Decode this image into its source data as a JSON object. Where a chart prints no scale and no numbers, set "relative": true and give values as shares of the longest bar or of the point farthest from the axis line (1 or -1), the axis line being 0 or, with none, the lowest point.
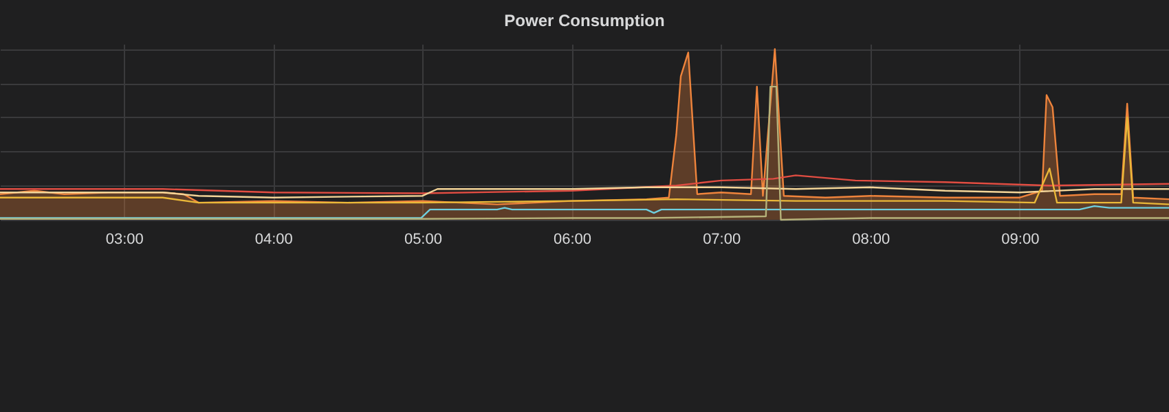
{
  "chart_data": {
    "type": "line",
    "title": "Power Consumption",
    "relative": true,
    "grid": true,
    "xlim": [
      2.17,
      10.0
    ],
    "xticks": [
      {
        "value": 3,
        "label": "03:00"
      },
      {
        "value": 4,
        "label": "04:00"
      },
      {
        "value": 5,
        "label": "05:00"
      },
      {
        "value": 6,
        "label": "06:00"
      },
      {
        "value": 7,
        "label": "07:00"
      },
      {
        "value": 8,
        "label": "08:00"
      },
      {
        "value": 9,
        "label": "09:00"
      }
    ],
    "series": [
      {
        "type": "area",
        "color": "#ef843c",
        "x": [
          2.17,
          2.4,
          2.6,
          2.9,
          3.19,
          3.26,
          3.4,
          3.5,
          4.0,
          4.5,
          5.0,
          5.5,
          6.0,
          6.5,
          6.65,
          6.7,
          6.73,
          6.78,
          6.84,
          7.0,
          7.2,
          7.24,
          7.28,
          7.36,
          7.42,
          7.7,
          8.0,
          8.5,
          9.0,
          9.15,
          9.18,
          9.22,
          9.27,
          9.5,
          9.68,
          9.72,
          9.76,
          10.0
        ],
        "values": [
          0.15,
          0.17,
          0.15,
          0.16,
          0.16,
          0.16,
          0.15,
          0.1,
          0.11,
          0.1,
          0.11,
          0.09,
          0.11,
          0.12,
          0.13,
          0.5,
          0.84,
          0.98,
          0.15,
          0.16,
          0.15,
          0.78,
          0.14,
          1.0,
          0.14,
          0.13,
          0.14,
          0.13,
          0.13,
          0.17,
          0.73,
          0.66,
          0.14,
          0.15,
          0.15,
          0.68,
          0.13,
          0.12
        ]
      },
      {
        "color": "#e24d42",
        "x": [
          2.17,
          3.19,
          3.26,
          4.0,
          5.0,
          6.0,
          6.7,
          7.0,
          7.35,
          7.5,
          7.9,
          8.5,
          9.2,
          10.0
        ],
        "values": [
          0.18,
          0.18,
          0.18,
          0.16,
          0.155,
          0.17,
          0.2,
          0.23,
          0.24,
          0.26,
          0.23,
          0.22,
          0.2,
          0.21
        ]
      },
      {
        "color": "#f4d598",
        "x": [
          2.17,
          3.19,
          3.26,
          3.5,
          4.0,
          5.0,
          5.1,
          5.5,
          6.0,
          6.5,
          7.0,
          7.5,
          8.0,
          8.5,
          9.0,
          9.5,
          10.0
        ],
        "values": [
          0.16,
          0.16,
          0.16,
          0.14,
          0.13,
          0.14,
          0.18,
          0.18,
          0.18,
          0.19,
          0.19,
          0.18,
          0.19,
          0.17,
          0.16,
          0.18,
          0.18
        ]
      },
      {
        "color": "#eab839",
        "x": [
          2.17,
          3.19,
          3.26,
          3.5,
          5.0,
          6.0,
          6.7,
          7.5,
          8.5,
          9.1,
          9.2,
          9.25,
          9.68,
          9.72,
          9.76,
          10.0
        ],
        "values": [
          0.13,
          0.13,
          0.13,
          0.1,
          0.1,
          0.11,
          0.12,
          0.11,
          0.11,
          0.1,
          0.3,
          0.1,
          0.1,
          0.6,
          0.1,
          0.09
        ]
      },
      {
        "color": "#6ed0e0",
        "x": [
          2.17,
          3.19,
          3.26,
          4.99,
          5.05,
          5.5,
          5.55,
          5.6,
          6.5,
          6.55,
          6.6,
          7.35,
          8.0,
          9.4,
          9.5,
          9.6,
          10.0
        ],
        "values": [
          0.01,
          0.01,
          0.01,
          0.01,
          0.06,
          0.06,
          0.07,
          0.06,
          0.06,
          0.04,
          0.06,
          0.06,
          0.06,
          0.06,
          0.08,
          0.07,
          0.07
        ]
      },
      {
        "color": "#b5b27a",
        "x": [
          2.17,
          3.19,
          3.26,
          5.0,
          6.0,
          6.5,
          7.3,
          7.33,
          7.37,
          7.4,
          8.0,
          10.0
        ],
        "values": [
          0.005,
          0.005,
          0.005,
          0.005,
          0.01,
          0.01,
          0.02,
          0.78,
          0.78,
          0.0,
          0.01,
          0.01
        ]
      }
    ]
  }
}
